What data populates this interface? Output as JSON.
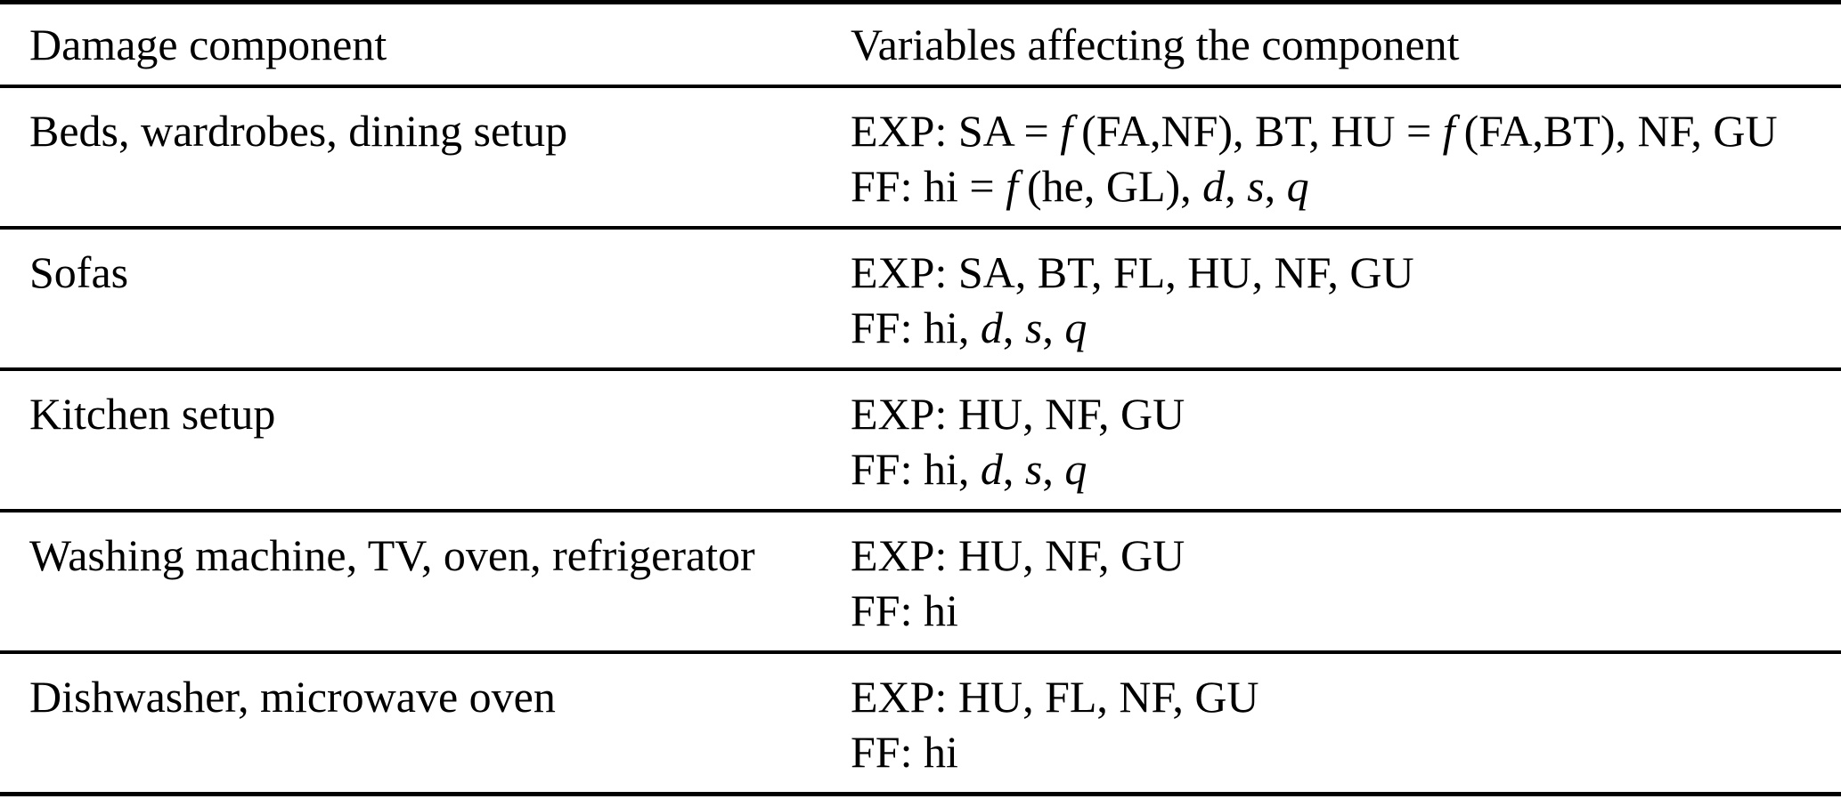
{
  "page": {
    "background_color": "#ffffff",
    "text_color": "#000000",
    "rule_color": "#000000"
  },
  "table": {
    "columns": [
      "Damage component",
      "Variables affecting the component"
    ],
    "rows": [
      {
        "component": "Beds, wardrobes, dining setup",
        "lines": [
          [
            {
              "t": "EXP: SA = "
            },
            {
              "t": "f",
              "i": true
            },
            {
              "t": " (FA,NF), BT, HU = "
            },
            {
              "t": "f",
              "i": true
            },
            {
              "t": " (FA,BT), NF, GU"
            }
          ],
          [
            {
              "t": "FF: hi = "
            },
            {
              "t": "f",
              "i": true
            },
            {
              "t": " (he, GL), "
            },
            {
              "t": "d",
              "i": true
            },
            {
              "t": ", "
            },
            {
              "t": "s",
              "i": true
            },
            {
              "t": ", "
            },
            {
              "t": "q",
              "i": true
            }
          ]
        ]
      },
      {
        "component": "Sofas",
        "lines": [
          [
            {
              "t": "EXP: SA, BT, FL, HU, NF, GU"
            }
          ],
          [
            {
              "t": "FF: hi, "
            },
            {
              "t": "d",
              "i": true
            },
            {
              "t": ", "
            },
            {
              "t": "s",
              "i": true
            },
            {
              "t": ", "
            },
            {
              "t": "q",
              "i": true
            }
          ]
        ]
      },
      {
        "component": "Kitchen setup",
        "lines": [
          [
            {
              "t": "EXP: HU, NF, GU"
            }
          ],
          [
            {
              "t": "FF: hi, "
            },
            {
              "t": "d",
              "i": true
            },
            {
              "t": ", "
            },
            {
              "t": "s",
              "i": true
            },
            {
              "t": ", "
            },
            {
              "t": "q",
              "i": true
            }
          ]
        ]
      },
      {
        "component": "Washing machine, TV, oven, refrigerator",
        "lines": [
          [
            {
              "t": "EXP: HU, NF, GU"
            }
          ],
          [
            {
              "t": "FF: hi"
            }
          ]
        ]
      },
      {
        "component": "Dishwasher, microwave oven",
        "lines": [
          [
            {
              "t": "EXP: HU, FL, NF, GU"
            }
          ],
          [
            {
              "t": "FF: hi"
            }
          ]
        ]
      }
    ]
  }
}
